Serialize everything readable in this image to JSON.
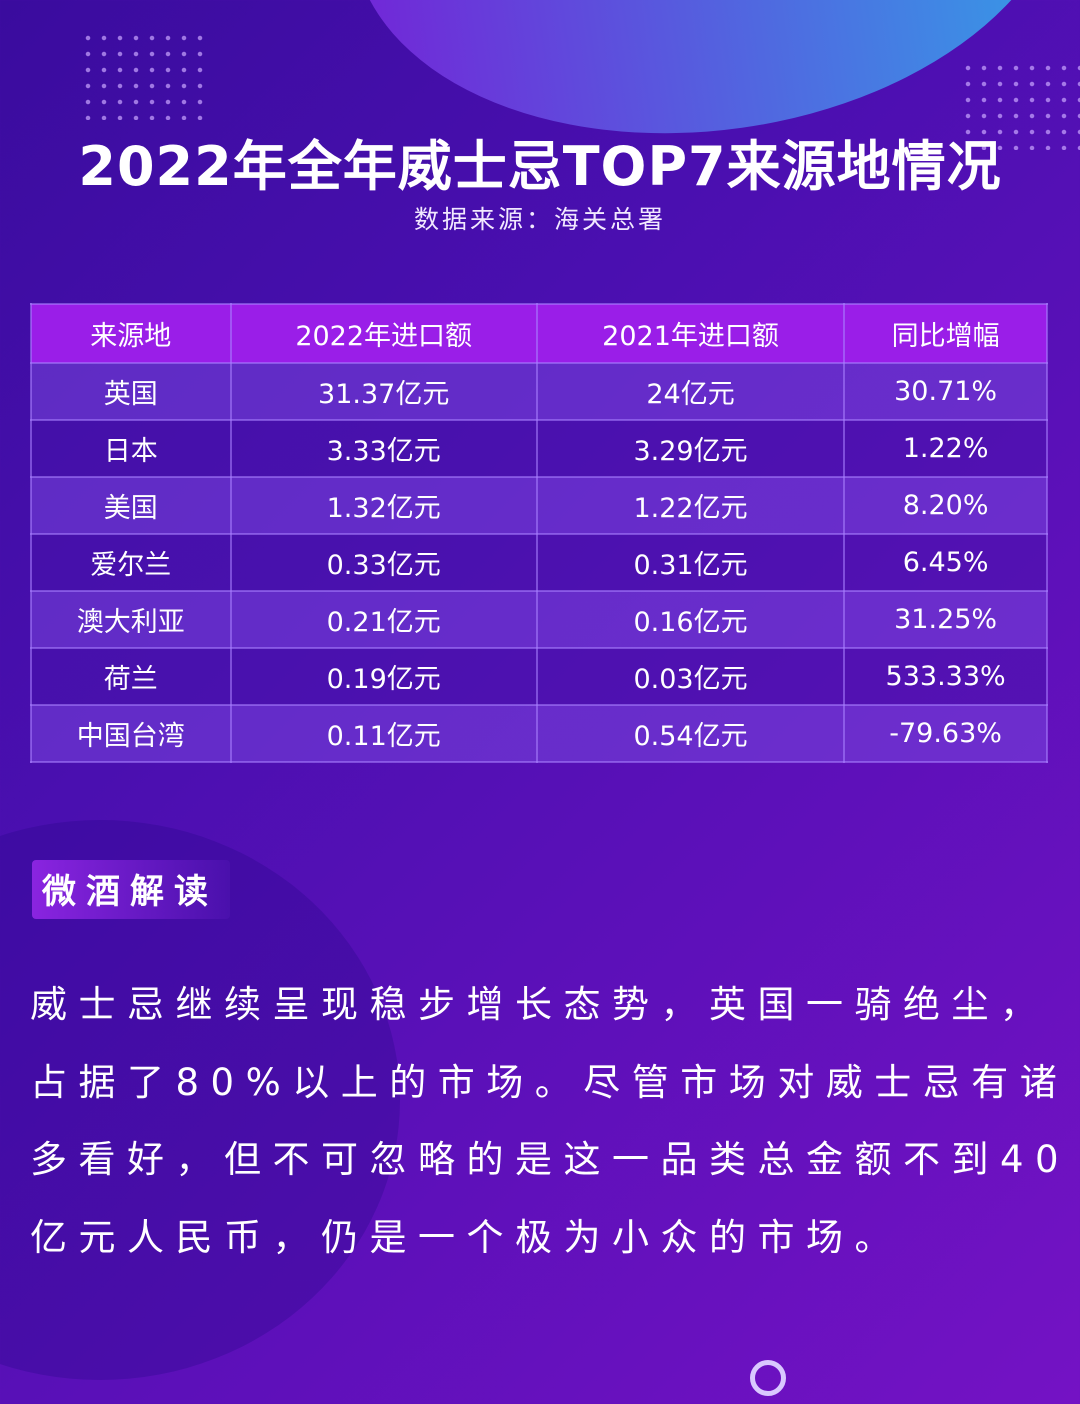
{
  "title": "2022年全年威士忌TOP7来源地情况",
  "source": "数据来源：海关总署",
  "table": {
    "headers": [
      "来源地",
      "2022年进口额",
      "2021年进口额",
      "同比增幅"
    ],
    "rows": [
      [
        "英国",
        "31.37亿元",
        "24亿元",
        "30.71%"
      ],
      [
        "日本",
        "3.33亿元",
        "3.29亿元",
        "1.22%"
      ],
      [
        "美国",
        "1.32亿元",
        "1.22亿元",
        "8.20%"
      ],
      [
        "爱尔兰",
        "0.33亿元",
        "0.31亿元",
        "6.45%"
      ],
      [
        "澳大利亚",
        "0.21亿元",
        "0.16亿元",
        "31.25%"
      ],
      [
        "荷兰",
        "0.19亿元",
        "0.03亿元",
        "533.33%"
      ],
      [
        "中国台湾",
        "0.11亿元",
        "0.54亿元",
        "-79.63%"
      ]
    ]
  },
  "section_tag": "微酒解读",
  "paragraph_lines": [
    "威士忌继续呈现稳步增长态势，英国一骑绝尘，",
    "占据了80%以上的市场。尽管市场对威士忌有诸",
    "多看好，但不可忽略的是这一品类总金额不到40",
    "亿元人民币，仍是一个极为小众的市场。"
  ],
  "colors": {
    "header_row": "#9a1ee8",
    "background_start": "#3a0c9e",
    "background_end": "#7412c4"
  }
}
